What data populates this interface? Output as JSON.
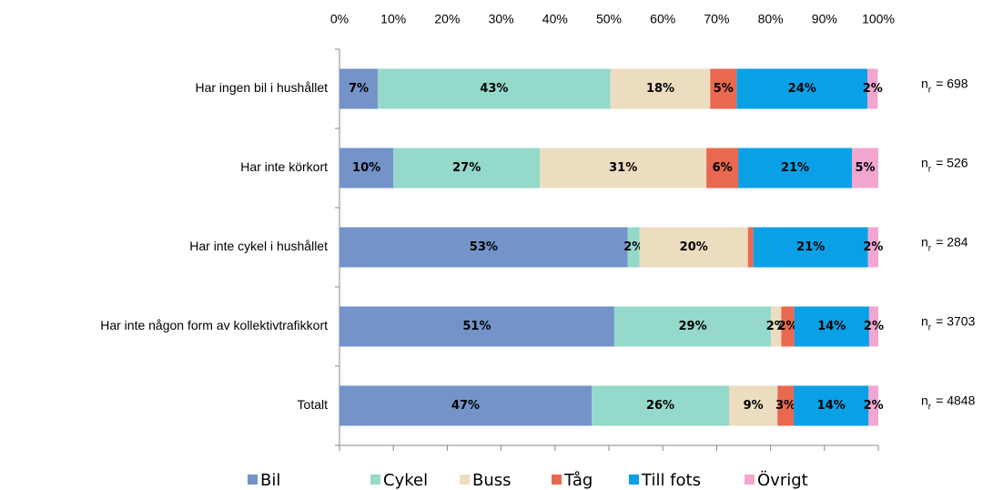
{
  "chart_data": {
    "type": "stacked-bar-horizontal",
    "categories": [
      "Har ingen bil i hushållet",
      "Har inte körkort",
      "Har inte cykel i hushållet",
      "Har inte någon form av kollektivtrafikkort",
      "Totalt"
    ],
    "series": [
      {
        "name": "Bil",
        "color": "#7393c9",
        "values": [
          7.1,
          10.0,
          53.5,
          51.0,
          46.8
        ],
        "value_labels": [
          "7%",
          "10%",
          "53%",
          "51%",
          "47%"
        ]
      },
      {
        "name": "Cykel",
        "color": "#94d9c9",
        "values": [
          43.2,
          27.2,
          2.2,
          29.1,
          25.5
        ],
        "value_labels": [
          "43%",
          "27%",
          "2%",
          "29%",
          "26%"
        ]
      },
      {
        "name": "Buss",
        "color": "#ecdcc0",
        "values": [
          18.5,
          30.9,
          20.1,
          1.9,
          9.0
        ],
        "value_labels": [
          "18%",
          "31%",
          "20%",
          "2%",
          "9%"
        ]
      },
      {
        "name": "Tåg",
        "color": "#e8694f",
        "values": [
          4.9,
          5.9,
          1.0,
          2.4,
          3.0
        ],
        "value_labels": [
          "5%",
          "6%",
          null,
          "2%",
          "3%"
        ]
      },
      {
        "name": "Till fots",
        "color": "#0aa0e6",
        "values": [
          24.3,
          21.1,
          21.3,
          13.9,
          13.9
        ],
        "value_labels": [
          "24%",
          "21%",
          "21%",
          "14%",
          "14%"
        ]
      },
      {
        "name": "Övrigt",
        "color": "#f2a6cf",
        "values": [
          1.9,
          4.9,
          1.9,
          1.7,
          1.8
        ],
        "value_labels": [
          "2%",
          "5%",
          "2%",
          "2%",
          "2%"
        ]
      }
    ],
    "xlim": [
      0,
      100
    ],
    "xticks": [
      {
        "value": 0,
        "label": "0%"
      },
      {
        "value": 10,
        "label": "10%"
      },
      {
        "value": 20,
        "label": "20%"
      },
      {
        "value": 30,
        "label": "30%"
      },
      {
        "value": 40,
        "label": "40%"
      },
      {
        "value": 50,
        "label": "50%"
      },
      {
        "value": 60,
        "label": "60%"
      },
      {
        "value": 70,
        "label": "70%"
      },
      {
        "value": 80,
        "label": "80%"
      },
      {
        "value": 90,
        "label": "90%"
      },
      {
        "value": 100,
        "label": "100%"
      }
    ],
    "annotations": [
      {
        "base": "n",
        "sub": "r",
        "text": "= 698"
      },
      {
        "base": "n",
        "sub": "r",
        "text": "= 526"
      },
      {
        "base": "n",
        "sub": "r",
        "text": "= 284"
      },
      {
        "base": "n",
        "sub": "r",
        "text": "= 3703"
      },
      {
        "base": "n",
        "sub": "r",
        "text": "= 4848"
      }
    ],
    "legend": "bottom"
  }
}
